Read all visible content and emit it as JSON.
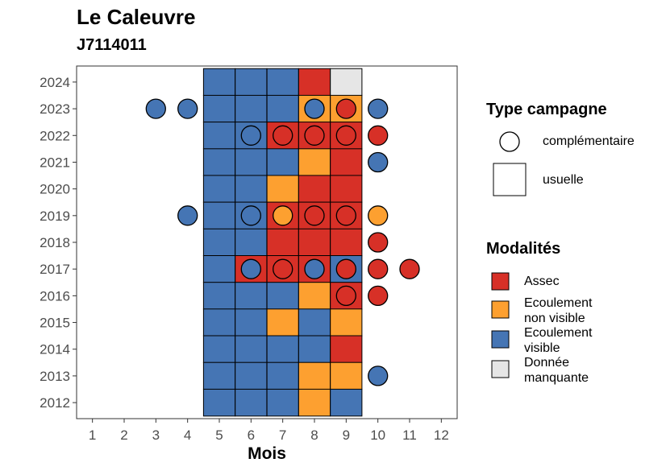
{
  "chart_data": {
    "type": "heatmap",
    "title": "Le Caleuvre",
    "subtitle": "J7114011",
    "xlabel": "Mois",
    "ylabel": "",
    "x_ticks": [
      "1",
      "2",
      "3",
      "4",
      "5",
      "6",
      "7",
      "8",
      "9",
      "10",
      "11",
      "12"
    ],
    "y_ticks": [
      "2012",
      "2013",
      "2014",
      "2015",
      "2016",
      "2017",
      "2018",
      "2019",
      "2020",
      "2021",
      "2022",
      "2023",
      "2024"
    ],
    "xlim": [
      0.5,
      12.5
    ],
    "ylim": [
      2011.4,
      2024.6
    ],
    "grid": false,
    "categories": {
      "A": {
        "label": "Assec",
        "color": "#D73027"
      },
      "O": {
        "label": "Ecoulement\nnon visible",
        "color": "#FDA030"
      },
      "B": {
        "label": "Ecoulement\nvisible",
        "color": "#4575B4"
      },
      "G": {
        "label": "Donnée\nmanquante",
        "color": "#E6E6E6"
      }
    },
    "usuelle": [
      {
        "year": 2024,
        "months": [
          "B",
          "B",
          "B",
          "A",
          "G"
        ]
      },
      {
        "year": 2023,
        "months": [
          "B",
          "B",
          "B",
          "O",
          "O"
        ]
      },
      {
        "year": 2022,
        "months": [
          "B",
          "B",
          "A",
          "A",
          "A"
        ]
      },
      {
        "year": 2021,
        "months": [
          "B",
          "B",
          "B",
          "O",
          "A"
        ]
      },
      {
        "year": 2020,
        "months": [
          "B",
          "B",
          "O",
          "A",
          "A"
        ]
      },
      {
        "year": 2019,
        "months": [
          "B",
          "B",
          "A",
          "A",
          "A"
        ]
      },
      {
        "year": 2018,
        "months": [
          "B",
          "B",
          "A",
          "A",
          "A"
        ]
      },
      {
        "year": 2017,
        "months": [
          "B",
          "A",
          "A",
          "A",
          "B"
        ]
      },
      {
        "year": 2016,
        "months": [
          "B",
          "B",
          "B",
          "O",
          "A"
        ]
      },
      {
        "year": 2015,
        "months": [
          "B",
          "B",
          "O",
          "B",
          "O"
        ]
      },
      {
        "year": 2014,
        "months": [
          "B",
          "B",
          "B",
          "B",
          "A"
        ]
      },
      {
        "year": 2013,
        "months": [
          "B",
          "B",
          "B",
          "O",
          "O"
        ]
      },
      {
        "year": 2012,
        "months": [
          "B",
          "B",
          "B",
          "O",
          "B"
        ]
      }
    ],
    "usuelle_first_month": 5,
    "complementaire": [
      {
        "year": 2023,
        "month": 3,
        "cat": "B"
      },
      {
        "year": 2023,
        "month": 4,
        "cat": "B"
      },
      {
        "year": 2023,
        "month": 8,
        "cat": "B"
      },
      {
        "year": 2023,
        "month": 9,
        "cat": "A"
      },
      {
        "year": 2023,
        "month": 10,
        "cat": "B"
      },
      {
        "year": 2022,
        "month": 6,
        "cat": "B"
      },
      {
        "year": 2022,
        "month": 7,
        "cat": "A"
      },
      {
        "year": 2022,
        "month": 8,
        "cat": "A"
      },
      {
        "year": 2022,
        "month": 9,
        "cat": "A"
      },
      {
        "year": 2022,
        "month": 10,
        "cat": "A"
      },
      {
        "year": 2021,
        "month": 10,
        "cat": "B"
      },
      {
        "year": 2019,
        "month": 4,
        "cat": "B"
      },
      {
        "year": 2019,
        "month": 6,
        "cat": "B"
      },
      {
        "year": 2019,
        "month": 7,
        "cat": "O"
      },
      {
        "year": 2019,
        "month": 8,
        "cat": "A"
      },
      {
        "year": 2019,
        "month": 9,
        "cat": "A"
      },
      {
        "year": 2019,
        "month": 10,
        "cat": "O"
      },
      {
        "year": 2018,
        "month": 10,
        "cat": "A"
      },
      {
        "year": 2017,
        "month": 6,
        "cat": "B"
      },
      {
        "year": 2017,
        "month": 7,
        "cat": "A"
      },
      {
        "year": 2017,
        "month": 8,
        "cat": "B"
      },
      {
        "year": 2017,
        "month": 9,
        "cat": "A"
      },
      {
        "year": 2017,
        "month": 10,
        "cat": "A"
      },
      {
        "year": 2017,
        "month": 11,
        "cat": "A"
      },
      {
        "year": 2016,
        "month": 9,
        "cat": "A"
      },
      {
        "year": 2016,
        "month": 10,
        "cat": "A"
      },
      {
        "year": 2013,
        "month": 10,
        "cat": "B"
      }
    ]
  },
  "legend": {
    "type_title": "Type campagne",
    "type_items": [
      "complémentaire",
      "usuelle"
    ],
    "modalites_title": "Modalités",
    "modalites_items": [
      "Assec",
      "Ecoulement\nnon visible",
      "Ecoulement\nvisible",
      "Donnée\nmanquante"
    ]
  }
}
